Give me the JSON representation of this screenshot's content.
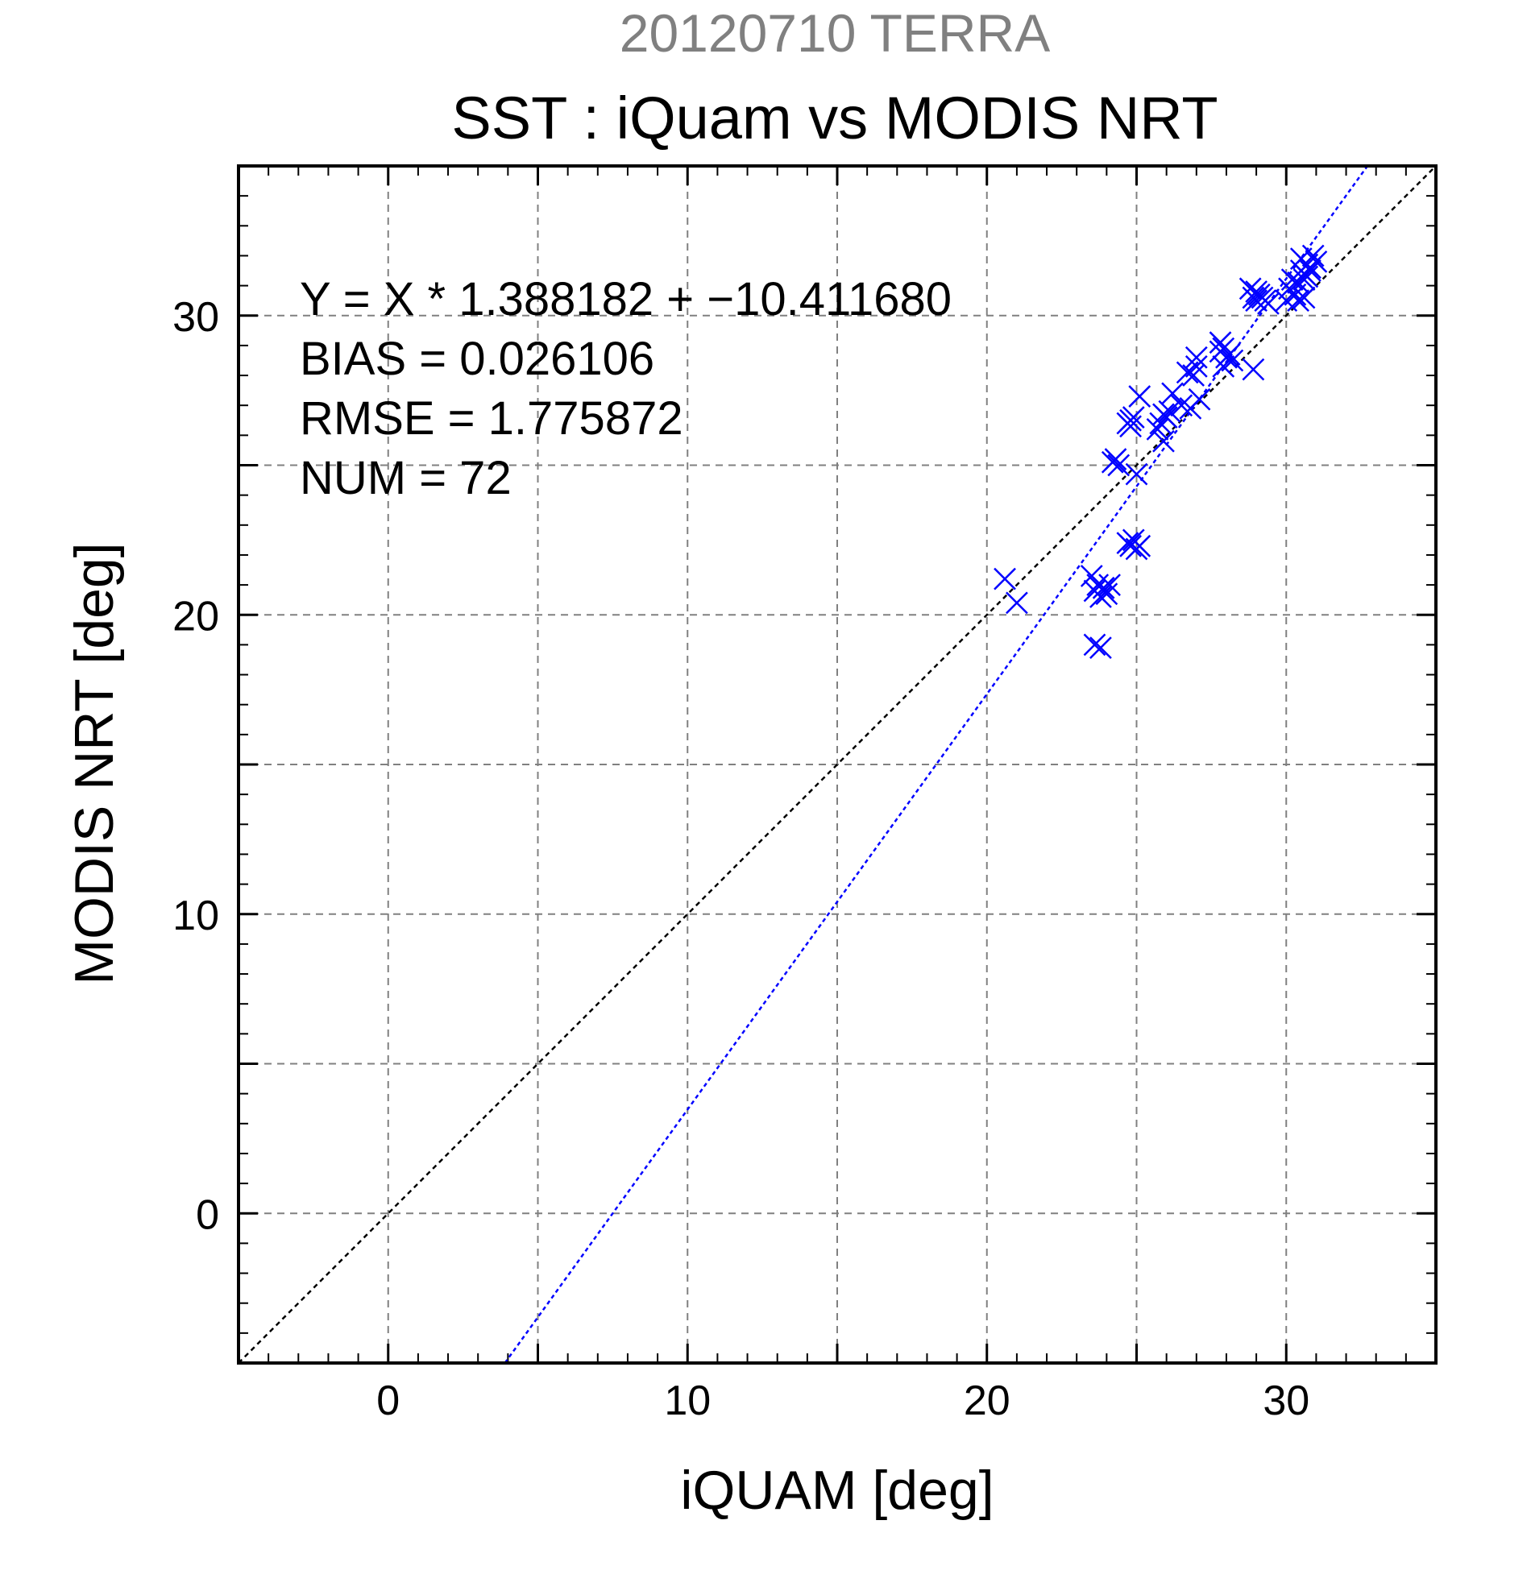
{
  "chart_data": {
    "type": "scatter",
    "title_top": "20120710 TERRA",
    "title": "SST : iQuam vs MODIS NRT",
    "xlabel": "iQUAM [deg]",
    "ylabel": "MODIS NRT [deg]",
    "xlim": [
      -5,
      35
    ],
    "ylim": [
      -5,
      35
    ],
    "xticks": [
      0,
      10,
      20,
      30
    ],
    "yticks": [
      0,
      10,
      20,
      30
    ],
    "minor_step": 1,
    "grid_step": 5,
    "grid": true,
    "marker": "x",
    "colors": {
      "points": "#0000ff",
      "fit": "#0000ff",
      "identity": "#000000",
      "grid": "#808080"
    },
    "stats": [
      "Y = X * 1.388182 + −10.411680",
      "BIAS = 0.026106",
      "RMSE = 1.775872",
      "NUM = 72"
    ],
    "fit": {
      "slope": 1.388182,
      "intercept": -10.41168
    },
    "identity_line": true,
    "points": [
      [
        20.6,
        21.2
      ],
      [
        21.0,
        20.4
      ],
      [
        23.5,
        21.3
      ],
      [
        23.6,
        20.8
      ],
      [
        23.7,
        21.0
      ],
      [
        23.8,
        20.6
      ],
      [
        23.9,
        20.9
      ],
      [
        24.0,
        20.7
      ],
      [
        24.1,
        21.0
      ],
      [
        23.6,
        19.0
      ],
      [
        23.8,
        18.9
      ],
      [
        24.2,
        25.1
      ],
      [
        24.4,
        25.0
      ],
      [
        24.3,
        25.2
      ],
      [
        24.7,
        26.4
      ],
      [
        24.8,
        26.5
      ],
      [
        24.9,
        26.6
      ],
      [
        24.8,
        26.3
      ],
      [
        24.7,
        22.4
      ],
      [
        24.9,
        22.5
      ],
      [
        25.0,
        22.2
      ],
      [
        25.1,
        22.3
      ],
      [
        24.8,
        22.3
      ],
      [
        25.0,
        24.7
      ],
      [
        25.1,
        27.3
      ],
      [
        25.7,
        26.2
      ],
      [
        25.8,
        26.4
      ],
      [
        25.9,
        26.7
      ],
      [
        26.0,
        26.6
      ],
      [
        26.1,
        26.8
      ],
      [
        25.9,
        25.8
      ],
      [
        26.2,
        27.4
      ],
      [
        26.5,
        27.0
      ],
      [
        26.8,
        26.9
      ],
      [
        26.7,
        28.1
      ],
      [
        26.9,
        28.0
      ],
      [
        27.0,
        28.3
      ],
      [
        27.0,
        28.6
      ],
      [
        27.1,
        27.2
      ],
      [
        27.8,
        29.1
      ],
      [
        27.9,
        28.9
      ],
      [
        28.0,
        28.6
      ],
      [
        28.1,
        28.7
      ],
      [
        27.9,
        28.3
      ],
      [
        28.2,
        28.5
      ],
      [
        27.8,
        28.8
      ],
      [
        28.8,
        30.9
      ],
      [
        28.9,
        30.6
      ],
      [
        29.0,
        30.5
      ],
      [
        29.1,
        30.7
      ],
      [
        29.3,
        30.5
      ],
      [
        29.4,
        30.4
      ],
      [
        29.0,
        30.8
      ],
      [
        29.2,
        30.6
      ],
      [
        28.9,
        28.2
      ],
      [
        30.0,
        30.5
      ],
      [
        30.1,
        30.9
      ],
      [
        30.2,
        31.2
      ],
      [
        30.3,
        30.7
      ],
      [
        30.4,
        30.5
      ],
      [
        30.5,
        31.5
      ],
      [
        30.6,
        31.4
      ],
      [
        30.5,
        31.9
      ],
      [
        30.7,
        31.7
      ],
      [
        30.8,
        31.6
      ],
      [
        30.6,
        31.2
      ],
      [
        30.9,
        32.0
      ],
      [
        31.0,
        31.8
      ],
      [
        30.4,
        31.1
      ],
      [
        30.7,
        31.3
      ],
      [
        30.6,
        30.6
      ],
      [
        30.8,
        31.5
      ]
    ]
  }
}
